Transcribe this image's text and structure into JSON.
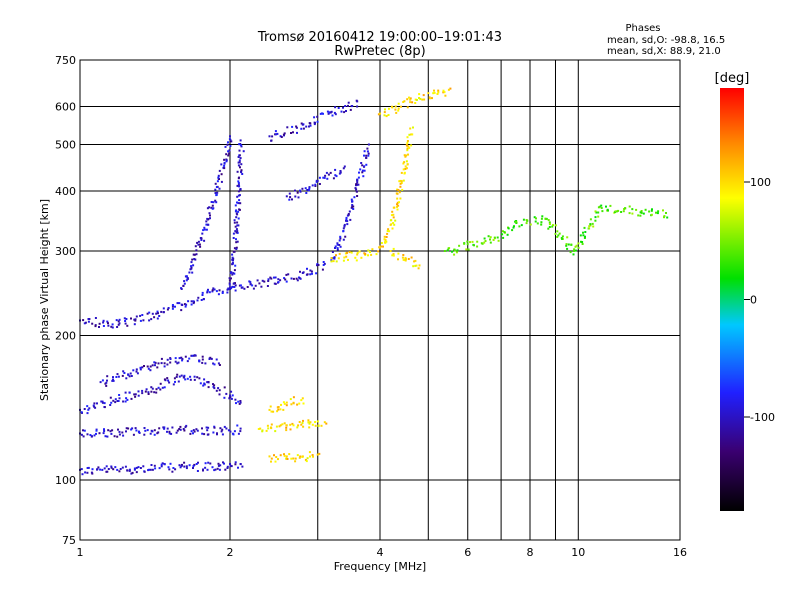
{
  "header": {
    "title_line1": "Tromsø 20160412 19:00:00–19:01:43",
    "title_line2": "RwPretec (8p)"
  },
  "stats": {
    "label": "Phases",
    "line_o": "mean, sd,O: -98.8, 16.5",
    "line_x": "mean, sd,X:  88.9, 21.0"
  },
  "chart_data": {
    "type": "scatter",
    "title": "Tromsø 20160412 19:00:00–19:01:43",
    "subtitle": "RwPretec (8p)",
    "xlabel": "Frequency [MHz]",
    "ylabel": "Stationary phase Virtual Height [km]",
    "x_scale": "log",
    "y_scale": "log",
    "xlim": [
      1,
      16
    ],
    "ylim": [
      75,
      750
    ],
    "x_ticks": [
      1,
      2,
      4,
      6,
      8,
      10,
      16
    ],
    "x_minor_ticks": [
      3,
      5,
      7,
      9
    ],
    "y_ticks": [
      75,
      100,
      200,
      300,
      400,
      500,
      600,
      750
    ],
    "grid": true,
    "colorbar": {
      "label": "[deg]",
      "range": [
        -180,
        180
      ],
      "ticks": [
        100,
        0,
        -100
      ],
      "colors": [
        "#000000",
        "#3a0070",
        "#2020ff",
        "#00c8ff",
        "#00e000",
        "#ffff00",
        "#ff8800",
        "#ff0000"
      ]
    },
    "series": [
      {
        "name": "",
        "phase": -100,
        "traces": [
          {
            "x": [
              1.0,
              1.3,
              1.6,
              1.9,
              2.0,
              2.1
            ],
            "y": [
              105,
              106,
              107,
              107,
              108,
              108
            ]
          },
          {
            "x": [
              1.0,
              1.2,
              1.5,
              1.8,
              2.1
            ],
            "y": [
              125,
              126,
              128,
              127,
              128
            ]
          },
          {
            "x": [
              1.0,
              1.2,
              1.4,
              1.6,
              1.8,
              2.0,
              2.1
            ],
            "y": [
              140,
              148,
              155,
              165,
              160,
              150,
              145
            ]
          },
          {
            "x": [
              1.1,
              1.3,
              1.5,
              1.7,
              1.9
            ],
            "y": [
              160,
              170,
              178,
              182,
              175
            ]
          },
          {
            "x": [
              1.0,
              1.2,
              1.4,
              1.6,
              1.8,
              2.0,
              2.2,
              2.5,
              2.8,
              3.1
            ],
            "y": [
              215,
              212,
              222,
              232,
              246,
              252,
              256,
              262,
              270,
              282
            ]
          },
          {
            "x": [
              2.0,
              2.05,
              2.1
            ],
            "y": [
              250,
              330,
              510
            ]
          },
          {
            "x": [
              1.6,
              1.8,
              2.0
            ],
            "y": [
              250,
              350,
              520
            ]
          },
          {
            "x": [
              2.4,
              2.8,
              3.2,
              3.6
            ],
            "y": [
              520,
              550,
              585,
              615
            ]
          },
          {
            "x": [
              2.6,
              3.0,
              3.4
            ],
            "y": [
              390,
              420,
              450
            ]
          },
          {
            "x": [
              3.2,
              3.4,
              3.6,
              3.8
            ],
            "y": [
              290,
              340,
              420,
              500
            ]
          }
        ]
      },
      {
        "name": "",
        "phase": 100,
        "traces": [
          {
            "x": [
              2.4,
              2.6,
              2.8,
              3.0
            ],
            "y": [
              112,
              112,
              112,
              113
            ]
          },
          {
            "x": [
              2.3,
              2.6,
              2.9,
              3.1
            ],
            "y": [
              128,
              130,
              132,
              132
            ]
          },
          {
            "x": [
              2.4,
              2.6,
              2.8
            ],
            "y": [
              140,
              145,
              148
            ]
          },
          {
            "x": [
              3.2,
              3.6,
              4.0,
              4.2,
              4.4,
              4.6
            ],
            "y": [
              290,
              295,
              305,
              340,
              420,
              540
            ]
          },
          {
            "x": [
              4.0,
              4.3,
              4.6,
              5.0,
              5.5
            ],
            "y": [
              580,
              600,
              620,
              640,
              650
            ]
          },
          {
            "x": [
              4.2,
              4.5,
              4.8
            ],
            "y": [
              300,
              290,
              280
            ]
          }
        ]
      },
      {
        "name": "",
        "phase": 40,
        "traces": [
          {
            "x": [
              5.4,
              6.0,
              6.8,
              7.5,
              8.6,
              9.8,
              11.0,
              15.0
            ],
            "y": [
              300,
              310,
              320,
              345,
              350,
              300,
              370,
              360
            ]
          }
        ]
      }
    ]
  }
}
